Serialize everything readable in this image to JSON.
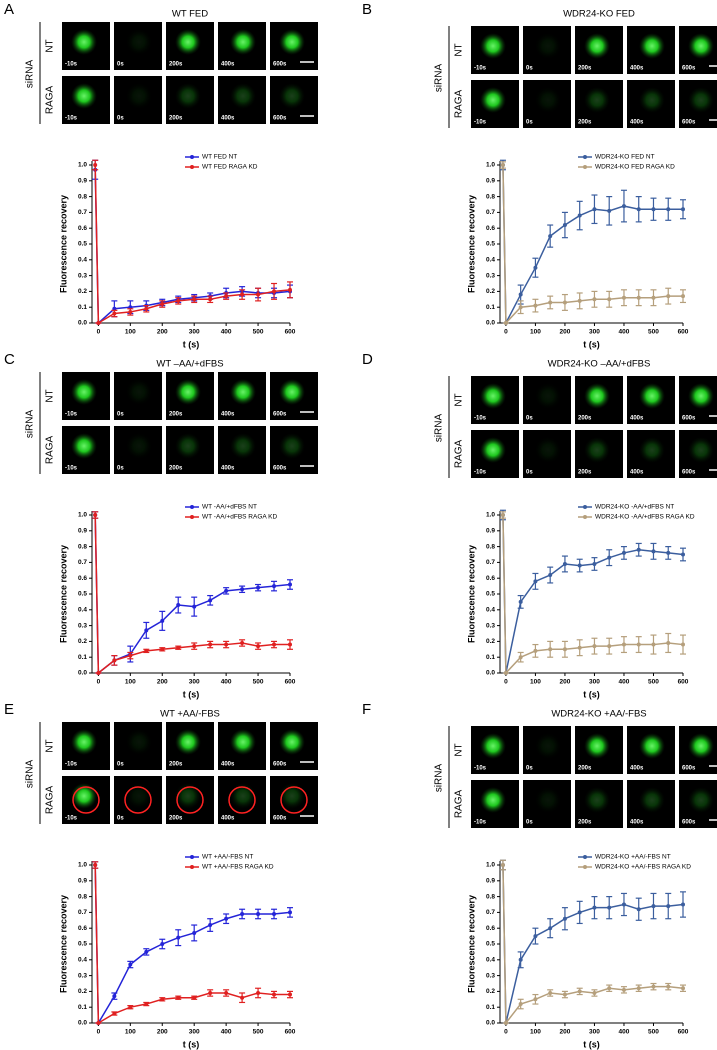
{
  "chart_data": [
    {
      "type": "line",
      "panel": "A",
      "title": "WT FED",
      "row_group": "siRNA",
      "row_labels": [
        "NT",
        "RAGA"
      ],
      "time_labels": [
        "-10s",
        "0s",
        "200s",
        "400s",
        "600s"
      ],
      "x": [
        -10,
        0,
        50,
        100,
        150,
        200,
        250,
        300,
        350,
        400,
        450,
        500,
        550,
        600
      ],
      "series": [
        {
          "name": "WT FED NT",
          "color": "#2424d8",
          "values": [
            0.97,
            0,
            0.09,
            0.1,
            0.11,
            0.13,
            0.15,
            0.16,
            0.17,
            0.19,
            0.2,
            0.19,
            0.19,
            0.2
          ],
          "errors": [
            0.06,
            0,
            0.05,
            0.04,
            0.03,
            0.02,
            0.02,
            0.02,
            0.02,
            0.03,
            0.03,
            0.03,
            0.03,
            0.04
          ]
        },
        {
          "name": "WT FED RAGA KD",
          "color": "#e02020",
          "values": [
            1.0,
            0,
            0.06,
            0.07,
            0.09,
            0.12,
            0.14,
            0.15,
            0.15,
            0.17,
            0.18,
            0.18,
            0.2,
            0.21
          ],
          "errors": [
            0.03,
            0,
            0.02,
            0.02,
            0.02,
            0.02,
            0.02,
            0.02,
            0.02,
            0.02,
            0.03,
            0.04,
            0.05,
            0.05
          ]
        }
      ],
      "xlim": [
        -20,
        600
      ],
      "ylim": [
        0,
        1
      ],
      "xticks": [
        0,
        100,
        200,
        300,
        400,
        500,
        600
      ],
      "yticks": [
        {
          "value": 0,
          "label": "0.0"
        },
        0.1,
        0.2,
        0.3,
        0.4,
        0.5,
        0.6,
        0.7,
        0.8,
        0.9,
        {
          "value": 1,
          "label": "1.0"
        }
      ],
      "xlabel": "t (s)",
      "ylabel": "Fluorescence recovery"
    },
    {
      "type": "line",
      "panel": "B",
      "title": "WDR24-KO FED",
      "row_group": "siRNA",
      "row_labels": [
        "NT",
        "RAGA"
      ],
      "time_labels": [
        "-10s",
        "0s",
        "200s",
        "400s",
        "600s"
      ],
      "x": [
        -10,
        0,
        50,
        100,
        150,
        200,
        250,
        300,
        350,
        400,
        450,
        500,
        550,
        600
      ],
      "series": [
        {
          "name": "WDR24-KO FED NT",
          "color": "#3b5e9e",
          "values": [
            1.0,
            0,
            0.18,
            0.35,
            0.55,
            0.62,
            0.68,
            0.72,
            0.71,
            0.74,
            0.72,
            0.72,
            0.72,
            0.72
          ],
          "errors": [
            0.03,
            0,
            0.06,
            0.06,
            0.07,
            0.08,
            0.09,
            0.09,
            0.09,
            0.1,
            0.08,
            0.07,
            0.07,
            0.06
          ]
        },
        {
          "name": "WDR24-KO FED RAGA KD",
          "color": "#b59f7c",
          "values": [
            1.0,
            0,
            0.1,
            0.11,
            0.13,
            0.13,
            0.14,
            0.15,
            0.15,
            0.16,
            0.16,
            0.16,
            0.17,
            0.17
          ],
          "errors": [
            0.02,
            0,
            0.04,
            0.04,
            0.04,
            0.05,
            0.05,
            0.05,
            0.05,
            0.05,
            0.05,
            0.05,
            0.05,
            0.04
          ]
        }
      ],
      "xlim": [
        -20,
        600
      ],
      "ylim": [
        0,
        1
      ],
      "xticks": [
        0,
        100,
        200,
        300,
        400,
        500,
        600
      ],
      "yticks": [
        {
          "value": 0,
          "label": "0.0"
        },
        0.1,
        0.2,
        0.3,
        0.4,
        0.5,
        0.6,
        0.7,
        0.8,
        0.9,
        {
          "value": 1,
          "label": "1.0"
        }
      ],
      "xlabel": "t (s)",
      "ylabel": "Fluorescence recovery"
    },
    {
      "type": "line",
      "panel": "C",
      "title": "WT –AA/+dFBS",
      "row_group": "siRNA",
      "row_labels": [
        "NT",
        "RAGA"
      ],
      "time_labels": [
        "-10s",
        "0s",
        "200s",
        "400s",
        "600s"
      ],
      "x": [
        -10,
        0,
        50,
        100,
        150,
        200,
        250,
        300,
        350,
        400,
        450,
        500,
        550,
        600
      ],
      "series": [
        {
          "name": "WT -AA/+dFBS NT",
          "color": "#2424d8",
          "values": [
            1.0,
            0,
            0.08,
            0.12,
            0.27,
            0.33,
            0.43,
            0.42,
            0.46,
            0.52,
            0.53,
            0.54,
            0.55,
            0.56
          ],
          "errors": [
            0.02,
            0,
            0.03,
            0.05,
            0.05,
            0.06,
            0.05,
            0.06,
            0.03,
            0.02,
            0.02,
            0.02,
            0.03,
            0.03
          ]
        },
        {
          "name": "WT -AA/+dFBS RAGA KD",
          "color": "#e02020",
          "values": [
            1.0,
            0,
            0.08,
            0.11,
            0.14,
            0.15,
            0.16,
            0.17,
            0.18,
            0.18,
            0.19,
            0.17,
            0.18,
            0.18
          ],
          "errors": [
            0.02,
            0,
            0.03,
            0.02,
            0.01,
            0.01,
            0.01,
            0.02,
            0.02,
            0.02,
            0.02,
            0.02,
            0.02,
            0.03
          ]
        }
      ],
      "xlim": [
        -20,
        600
      ],
      "ylim": [
        0,
        1
      ],
      "xticks": [
        0,
        100,
        200,
        300,
        400,
        500,
        600
      ],
      "yticks": [
        {
          "value": 0,
          "label": "0.0"
        },
        0.1,
        0.2,
        0.3,
        0.4,
        0.5,
        0.6,
        0.7,
        0.8,
        0.9,
        {
          "value": 1,
          "label": "1.0"
        }
      ],
      "xlabel": "t (s)",
      "ylabel": "Fluorescence recovery"
    },
    {
      "type": "line",
      "panel": "D",
      "title": "WDR24-KO –AA/+dFBS",
      "row_group": "siRNA",
      "row_labels": [
        "NT",
        "RAGA"
      ],
      "time_labels": [
        "-10s",
        "0s",
        "200s",
        "400s",
        "600s"
      ],
      "x": [
        -10,
        0,
        50,
        100,
        150,
        200,
        250,
        300,
        350,
        400,
        450,
        500,
        550,
        600
      ],
      "series": [
        {
          "name": "WDR24-KO -AA/+dFBS NT",
          "color": "#3b5e9e",
          "values": [
            1.0,
            0,
            0.45,
            0.58,
            0.62,
            0.69,
            0.68,
            0.69,
            0.73,
            0.76,
            0.78,
            0.77,
            0.76,
            0.75
          ],
          "errors": [
            0.03,
            0,
            0.04,
            0.05,
            0.05,
            0.05,
            0.04,
            0.04,
            0.05,
            0.04,
            0.04,
            0.05,
            0.04,
            0.04
          ]
        },
        {
          "name": "WDR24-KO -AA/+dFBS RAGA KD",
          "color": "#b59f7c",
          "values": [
            1.0,
            0,
            0.1,
            0.14,
            0.15,
            0.15,
            0.16,
            0.17,
            0.17,
            0.18,
            0.18,
            0.18,
            0.19,
            0.18
          ],
          "errors": [
            0.02,
            0,
            0.03,
            0.04,
            0.05,
            0.05,
            0.05,
            0.05,
            0.05,
            0.05,
            0.05,
            0.06,
            0.06,
            0.06
          ]
        }
      ],
      "xlim": [
        -20,
        600
      ],
      "ylim": [
        0,
        1
      ],
      "xticks": [
        0,
        100,
        200,
        300,
        400,
        500,
        600
      ],
      "yticks": [
        {
          "value": 0,
          "label": "0.0"
        },
        0.1,
        0.2,
        0.3,
        0.4,
        0.5,
        0.6,
        0.7,
        0.8,
        0.9,
        {
          "value": 1,
          "label": "1.0"
        }
      ],
      "xlabel": "t (s)",
      "ylabel": "Fluorescence recovery"
    },
    {
      "type": "line",
      "panel": "E",
      "title": "WT +AA/-FBS",
      "row_group": "siRNA",
      "row_labels": [
        "NT",
        "RAGA"
      ],
      "time_labels": [
        "-10s",
        "0s",
        "200s",
        "400s",
        "600s"
      ],
      "x": [
        -10,
        0,
        50,
        100,
        150,
        200,
        250,
        300,
        350,
        400,
        450,
        500,
        550,
        600
      ],
      "series": [
        {
          "name": "WT +AA/-FBS NT",
          "color": "#2424d8",
          "values": [
            1.0,
            0,
            0.17,
            0.37,
            0.45,
            0.5,
            0.54,
            0.57,
            0.62,
            0.66,
            0.69,
            0.69,
            0.69,
            0.7
          ],
          "errors": [
            0.02,
            0,
            0.02,
            0.02,
            0.02,
            0.03,
            0.05,
            0.05,
            0.04,
            0.03,
            0.03,
            0.03,
            0.03,
            0.03
          ]
        },
        {
          "name": "WT +AA/-FBS RAGA KD",
          "color": "#e02020",
          "values": [
            1.0,
            0,
            0.06,
            0.1,
            0.12,
            0.15,
            0.16,
            0.16,
            0.19,
            0.19,
            0.16,
            0.19,
            0.18,
            0.18
          ],
          "errors": [
            0.02,
            0,
            0.01,
            0.01,
            0.01,
            0.01,
            0.01,
            0.01,
            0.02,
            0.02,
            0.03,
            0.03,
            0.02,
            0.02
          ]
        }
      ],
      "xlim": [
        -20,
        600
      ],
      "ylim": [
        0,
        1
      ],
      "xticks": [
        0,
        100,
        200,
        300,
        400,
        500,
        600
      ],
      "yticks": [
        {
          "value": 0,
          "label": "0.0"
        },
        0.1,
        0.2,
        0.3,
        0.4,
        0.5,
        0.6,
        0.7,
        0.8,
        0.9,
        {
          "value": 1,
          "label": "1.0"
        }
      ],
      "xlabel": "t (s)",
      "ylabel": "Fluorescence recovery"
    },
    {
      "type": "line",
      "panel": "F",
      "title": "WDR24-KO +AA/-FBS",
      "row_group": "siRNA",
      "row_labels": [
        "NT",
        "RAGA"
      ],
      "time_labels": [
        "-10s",
        "0s",
        "200s",
        "400s",
        "600s"
      ],
      "x": [
        -10,
        0,
        50,
        100,
        150,
        200,
        250,
        300,
        350,
        400,
        450,
        500,
        550,
        600
      ],
      "series": [
        {
          "name": "WDR24-KO +AA/-FBS NT",
          "color": "#3b5e9e",
          "values": [
            1.0,
            0,
            0.4,
            0.55,
            0.6,
            0.66,
            0.7,
            0.73,
            0.73,
            0.75,
            0.72,
            0.74,
            0.74,
            0.75
          ],
          "errors": [
            0.03,
            0,
            0.05,
            0.05,
            0.06,
            0.07,
            0.07,
            0.07,
            0.07,
            0.07,
            0.07,
            0.08,
            0.08,
            0.08
          ]
        },
        {
          "name": "WDR24-KO +AA/-FBS RAGA KD",
          "color": "#b59f7c",
          "values": [
            1.0,
            0,
            0.12,
            0.15,
            0.19,
            0.18,
            0.2,
            0.19,
            0.22,
            0.21,
            0.22,
            0.23,
            0.23,
            0.22
          ],
          "errors": [
            0.03,
            0,
            0.03,
            0.03,
            0.02,
            0.02,
            0.02,
            0.02,
            0.02,
            0.02,
            0.02,
            0.02,
            0.02,
            0.02
          ]
        }
      ],
      "xlim": [
        -20,
        600
      ],
      "ylim": [
        0,
        1
      ],
      "xticks": [
        0,
        100,
        200,
        300,
        400,
        500,
        600
      ],
      "yticks": [
        {
          "value": 0,
          "label": "0.0"
        },
        0.1,
        0.2,
        0.3,
        0.4,
        0.5,
        0.6,
        0.7,
        0.8,
        0.9,
        {
          "value": 1,
          "label": "1.0"
        }
      ],
      "xlabel": "t (s)",
      "ylabel": "Fluorescence recovery"
    }
  ]
}
